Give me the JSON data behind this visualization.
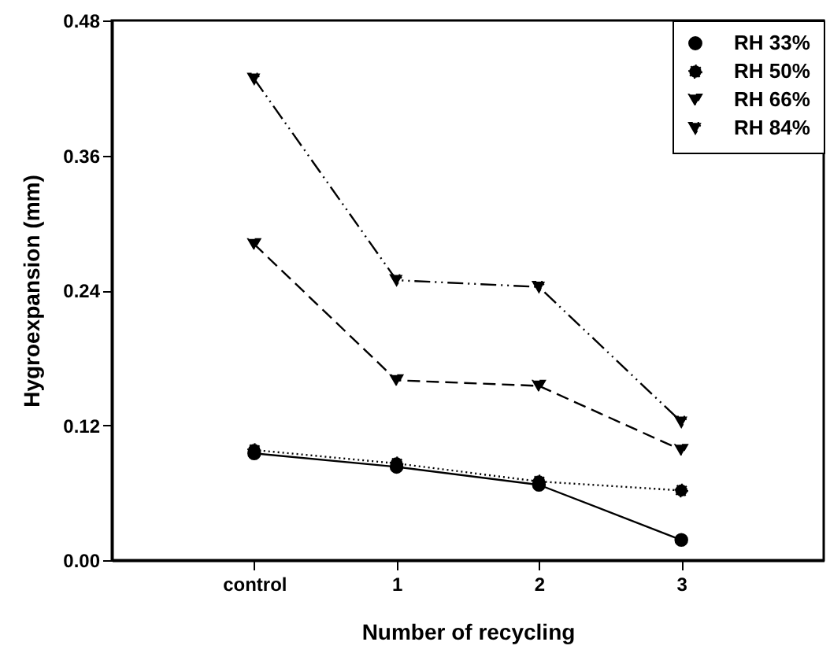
{
  "chart_data": {
    "type": "line",
    "xlabel": "Number of recycling",
    "ylabel": "Hygroexpansion (mm)",
    "categories": [
      "control",
      "1",
      "2",
      "3"
    ],
    "series": [
      {
        "name": "RH 33%",
        "color": "#000000",
        "marker": "circle",
        "line_style": "solid",
        "values": [
          0.095,
          0.083,
          0.067,
          0.018
        ]
      },
      {
        "name": "RH 50%",
        "color": "#000000",
        "marker": "circle",
        "line_style": "dotted",
        "values": [
          0.098,
          0.086,
          0.07,
          0.062
        ]
      },
      {
        "name": "RH 66%",
        "color": "#000000",
        "marker": "triangle",
        "line_style": "dashed",
        "values": [
          0.281,
          0.16,
          0.155,
          0.098
        ]
      },
      {
        "name": "RH 84%",
        "color": "#000000",
        "marker": "triangle",
        "line_style": "dashdot",
        "values": [
          0.428,
          0.249,
          0.243,
          0.123
        ]
      }
    ],
    "ylim": [
      0,
      0.48
    ],
    "yticks": [
      {
        "value": 0,
        "label": "0.00"
      },
      0.12,
      0.24,
      0.36,
      0.48
    ],
    "grid": false,
    "legend": "top right"
  }
}
